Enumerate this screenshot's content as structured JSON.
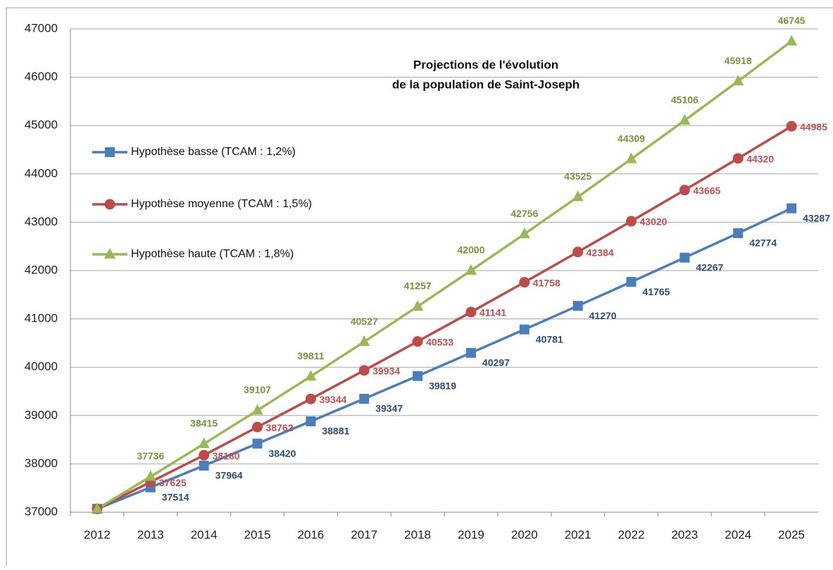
{
  "chart_data": {
    "type": "line",
    "title": [
      "Projections de l'évolution",
      "de la population de Saint-Joseph"
    ],
    "categories": [
      "2012",
      "2013",
      "2014",
      "2015",
      "2016",
      "2017",
      "2018",
      "2019",
      "2020",
      "2021",
      "2022",
      "2023",
      "2024",
      "2025"
    ],
    "series": [
      {
        "name": "Hypothèse basse (TCAM : 1,2%)",
        "color": "#4a7ebb",
        "label_color": "#2c4d75",
        "marker": "square",
        "values": [
          37070,
          37514,
          37964,
          38420,
          38881,
          39347,
          39819,
          40297,
          40781,
          41270,
          41765,
          42267,
          42774,
          43287
        ],
        "value_labels": [
          null,
          "37514",
          "37964",
          "38420",
          "38881",
          "39347",
          "39819",
          "40297",
          "40781",
          "41270",
          "41765",
          "42267",
          "42774",
          "43287"
        ]
      },
      {
        "name": "Hypothèse moyenne (TCAM : 1,5%)",
        "color": "#be4b48",
        "label_color": "#c0504d",
        "marker": "circle",
        "values": [
          37070,
          37625,
          38180,
          38762,
          39344,
          39934,
          40533,
          41141,
          41758,
          42384,
          43020,
          43665,
          44320,
          44985
        ],
        "value_labels": [
          null,
          "37625",
          "38180",
          "38762",
          "39344",
          "39934",
          "40533",
          "41141",
          "41758",
          "42384",
          "43020",
          "43665",
          "44320",
          "44985"
        ]
      },
      {
        "name": "Hypothèse haute (TCAM : 1,8%)",
        "color": "#98b954",
        "label_color": "#77933c",
        "marker": "triangle",
        "values": [
          37070,
          37736,
          38415,
          39107,
          39811,
          40527,
          41257,
          42000,
          42756,
          43525,
          44309,
          45106,
          45918,
          46745
        ],
        "value_labels": [
          null,
          "37736",
          "38415",
          "39107",
          "39811",
          "40527",
          "41257",
          "42000",
          "42756",
          "43525",
          "44309",
          "45106",
          "45918",
          "46745"
        ]
      }
    ],
    "ylim": [
      37000,
      47000
    ],
    "yticks": [
      37000,
      38000,
      39000,
      40000,
      41000,
      42000,
      43000,
      44000,
      45000,
      46000,
      47000
    ],
    "grid": true,
    "legend": "left"
  }
}
